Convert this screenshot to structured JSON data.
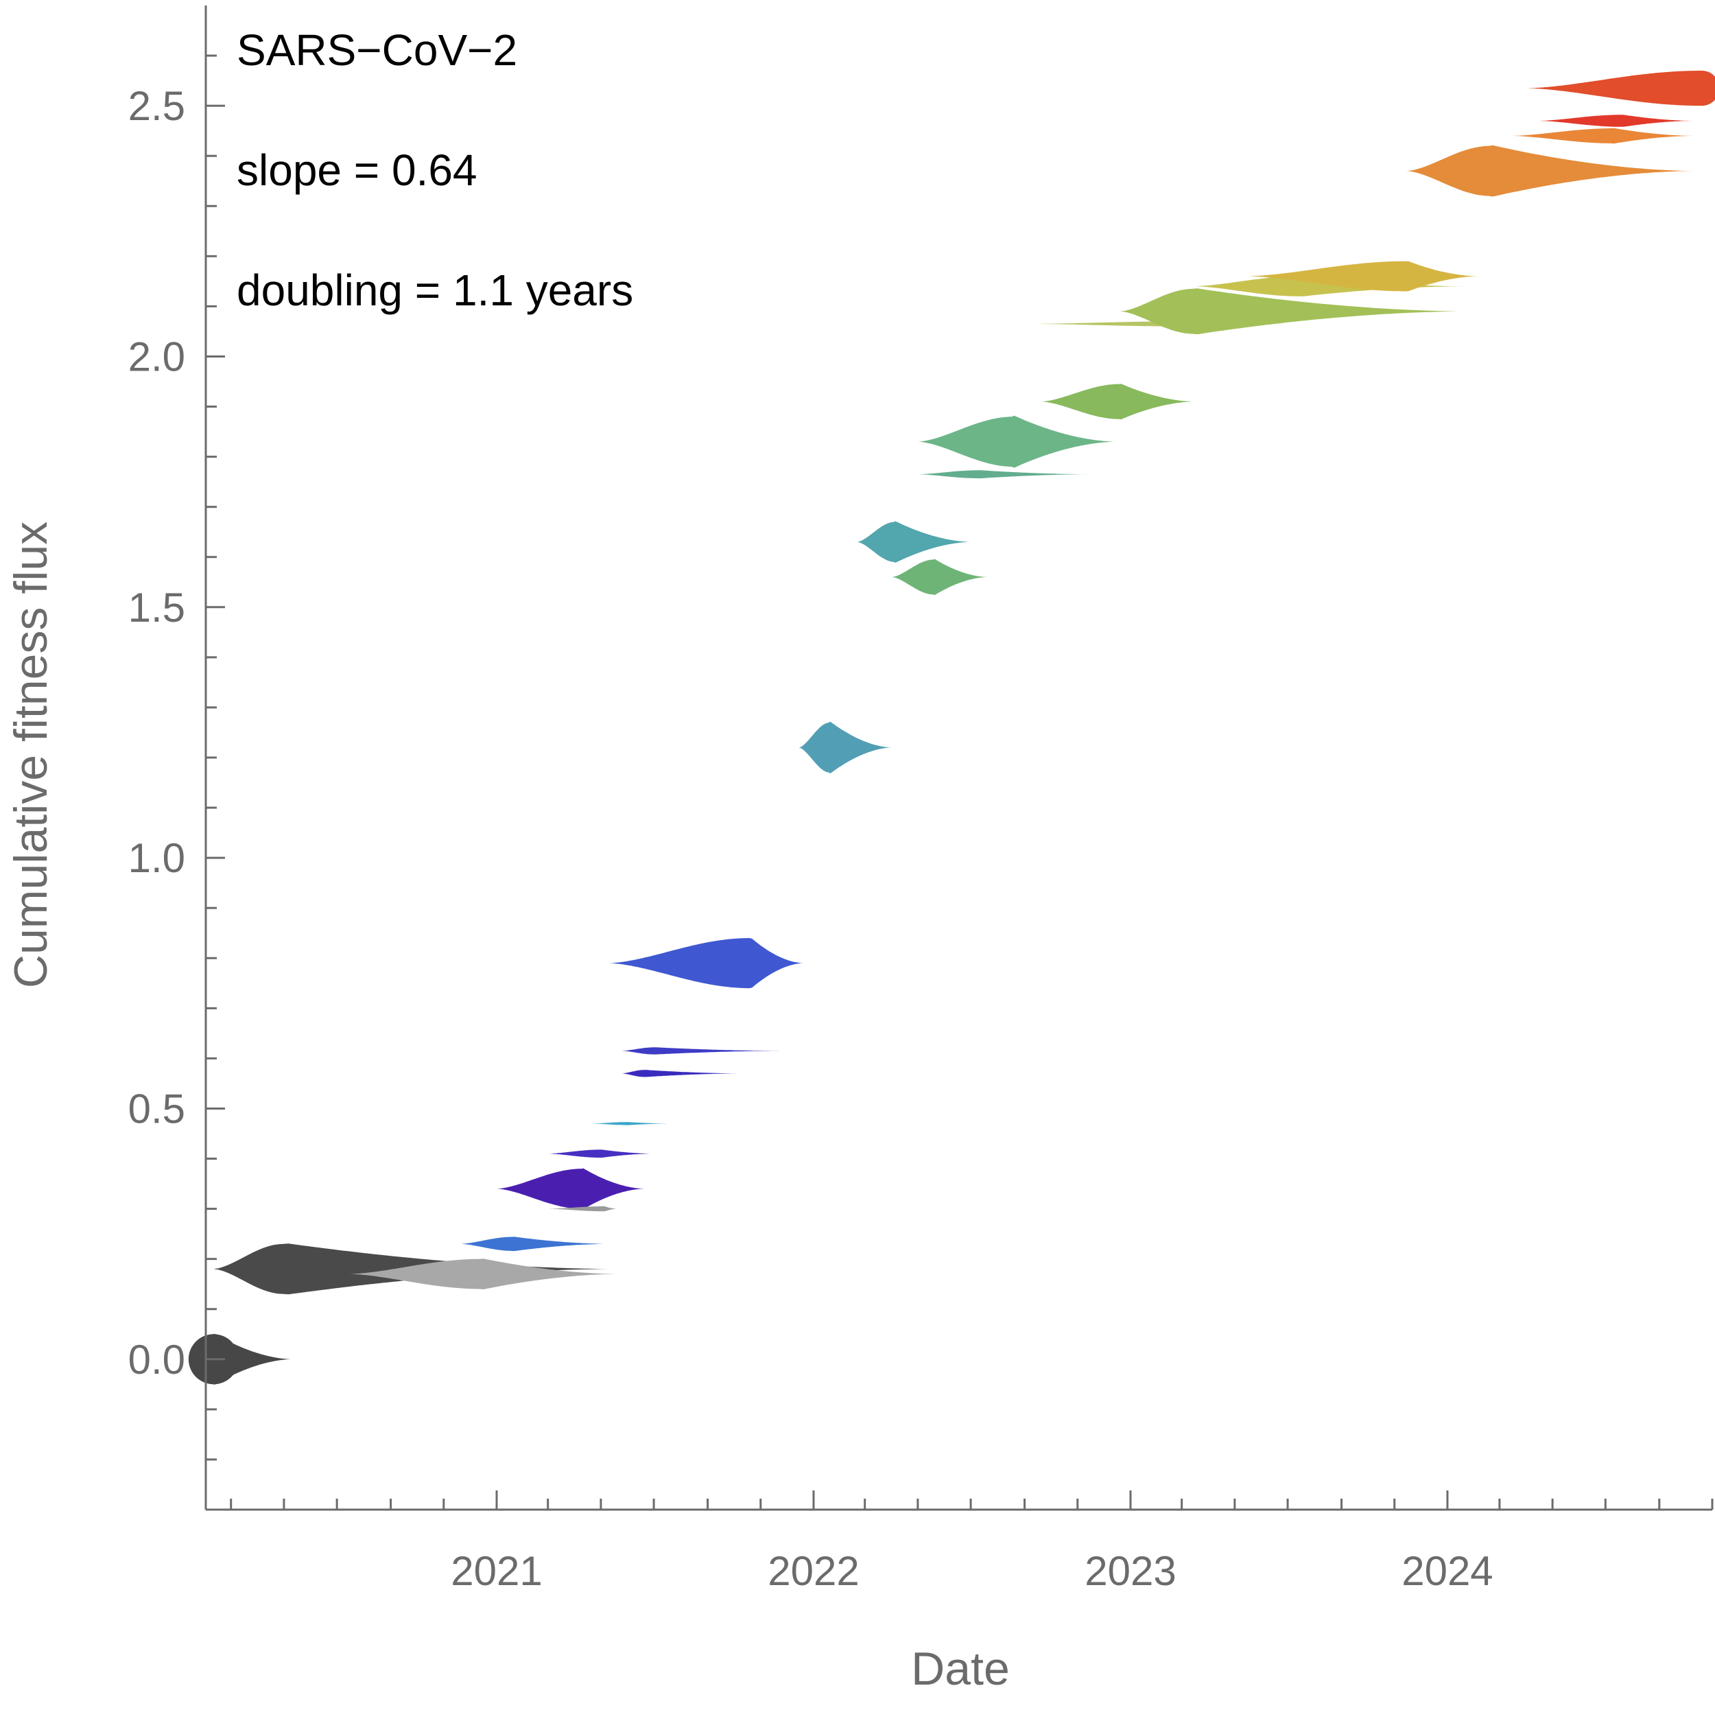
{
  "chart_data": {
    "type": "scatter",
    "title": "",
    "xlabel": "Date",
    "ylabel": "Cumulative fitness flux",
    "xlim": [
      "2020-02-01",
      "2024-11-01"
    ],
    "ylim": [
      -0.3,
      2.7
    ],
    "x_ticks": [
      "2021",
      "2022",
      "2023",
      "2024"
    ],
    "y_ticks": [
      "0.0",
      "0.5",
      "1.0",
      "1.5",
      "2.0",
      "2.5"
    ],
    "annotations": [
      "SARS−CoV−2",
      "slope = 0.64",
      "doubling = 1.1 years"
    ],
    "grid": false,
    "legend": "none",
    "series": [
      {
        "start": "2020-02-10",
        "peak": "2020-02-10",
        "end": "2020-05-10",
        "y": 0.0,
        "size": 0.05,
        "color": "#474747"
      },
      {
        "start": "2020-02-10",
        "peak": "2020-05-01",
        "end": "2021-05-15",
        "y": 0.18,
        "size": 0.05,
        "color": "#4a4a4a"
      },
      {
        "start": "2020-07-15",
        "peak": "2020-12-15",
        "end": "2021-05-20",
        "y": 0.17,
        "size": 0.03,
        "color": "#a8a8a8"
      },
      {
        "start": "2020-11-20",
        "peak": "2021-01-20",
        "end": "2021-05-10",
        "y": 0.23,
        "size": 0.014,
        "color": "#3d74d3"
      },
      {
        "start": "2021-01-01",
        "peak": "2021-04-10",
        "end": "2021-06-20",
        "y": 0.34,
        "size": 0.04,
        "color": "#4a1fb0"
      },
      {
        "start": "2021-03-01",
        "peak": "2021-05-05",
        "end": "2021-05-20",
        "y": 0.3,
        "size": 0.005,
        "color": "#9a9a9a"
      },
      {
        "start": "2021-03-01",
        "peak": "2021-05-01",
        "end": "2021-07-01",
        "y": 0.41,
        "size": 0.008,
        "color": "#4530c2"
      },
      {
        "start": "2021-04-20",
        "peak": "2021-06-01",
        "end": "2021-07-20",
        "y": 0.47,
        "size": 0.003,
        "color": "#3aa6c9"
      },
      {
        "start": "2021-05-25",
        "peak": "2021-06-20",
        "end": "2021-10-10",
        "y": 0.57,
        "size": 0.007,
        "color": "#3a2bbf"
      },
      {
        "start": "2021-05-25",
        "peak": "2021-07-01",
        "end": "2021-11-25",
        "y": 0.615,
        "size": 0.007,
        "color": "#3e3bc6"
      },
      {
        "start": "2021-05-10",
        "peak": "2021-10-20",
        "end": "2021-12-20",
        "y": 0.79,
        "size": 0.05,
        "color": "#3f58d1"
      },
      {
        "start": "2021-12-15",
        "peak": "2022-01-20",
        "end": "2022-04-01",
        "y": 1.22,
        "size": 0.05,
        "color": "#529fb5"
      },
      {
        "start": "2022-02-20",
        "peak": "2022-04-05",
        "end": "2022-07-01",
        "y": 1.63,
        "size": 0.04,
        "color": "#52a6ad"
      },
      {
        "start": "2022-04-01",
        "peak": "2022-05-20",
        "end": "2022-07-20",
        "y": 1.56,
        "size": 0.035,
        "color": "#6fb477"
      },
      {
        "start": "2022-05-01",
        "peak": "2022-08-20",
        "end": "2022-12-15",
        "y": 1.83,
        "size": 0.05,
        "color": "#6cb587"
      },
      {
        "start": "2022-05-01",
        "peak": "2022-07-10",
        "end": "2022-11-15",
        "y": 1.765,
        "size": 0.008,
        "color": "#62ad8e"
      },
      {
        "start": "2022-09-20",
        "peak": "2022-12-20",
        "end": "2023-03-15",
        "y": 1.91,
        "size": 0.035,
        "color": "#88b95c"
      },
      {
        "start": "2022-09-10",
        "peak": "2023-03-01",
        "end": "2023-07-01",
        "y": 2.065,
        "size": 0.005,
        "color": "#b7c463"
      },
      {
        "start": "2022-12-20",
        "peak": "2023-03-15",
        "end": "2024-01-20",
        "y": 2.09,
        "size": 0.045,
        "color": "#a2c057"
      },
      {
        "start": "2023-03-15",
        "peak": "2023-07-15",
        "end": "2024-01-20",
        "y": 2.14,
        "size": 0.02,
        "color": "#c7c24d"
      },
      {
        "start": "2023-05-15",
        "peak": "2023-11-15",
        "end": "2024-02-05",
        "y": 2.16,
        "size": 0.03,
        "color": "#d5b542"
      },
      {
        "start": "2023-11-15",
        "peak": "2024-02-20",
        "end": "2024-10-10",
        "y": 2.37,
        "size": 0.05,
        "color": "#e48c39"
      },
      {
        "start": "2024-03-15",
        "peak": "2024-07-10",
        "end": "2024-10-10",
        "y": 2.44,
        "size": 0.015,
        "color": "#e98637"
      },
      {
        "start": "2024-04-15",
        "peak": "2024-07-20",
        "end": "2024-10-10",
        "y": 2.47,
        "size": 0.012,
        "color": "#e2392a"
      },
      {
        "start": "2024-04-01",
        "peak": "2024-10-20",
        "end": "2024-10-20",
        "y": 2.535,
        "size": 0.035,
        "color": "#e24d2b"
      }
    ]
  }
}
